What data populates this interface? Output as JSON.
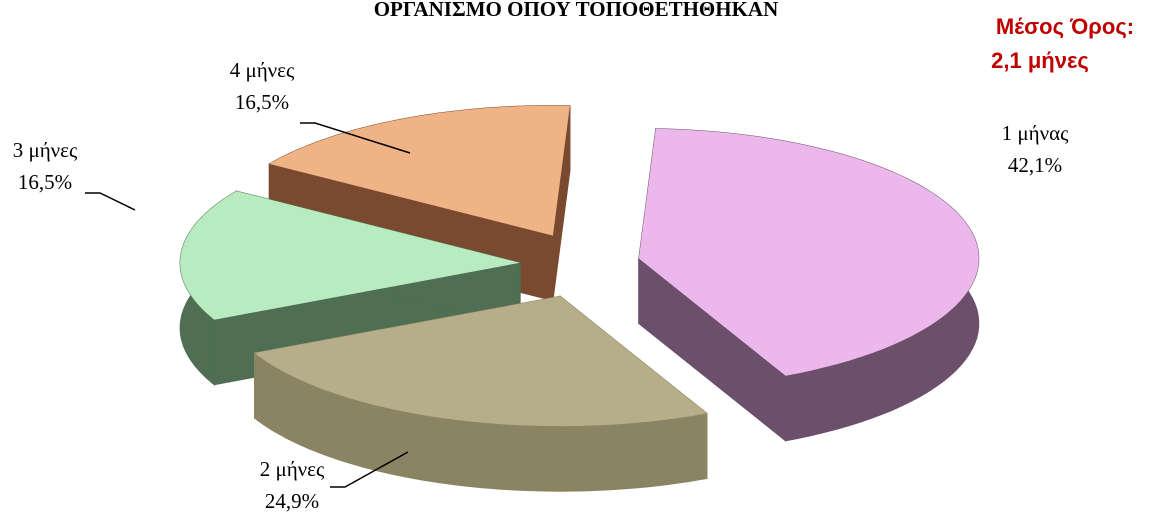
{
  "chart_data": {
    "type": "pie3d",
    "title": "ΟΡΓΑΝΙΣΜΟ ΟΠΟΥ ΤΟΠΟΘΕΤΗΘΗΚΑΝ",
    "annotation": [
      "Μέσος Όρος:",
      "2,1 μήνες"
    ],
    "categories": [
      "1 μήνας",
      "2 μήνες",
      "3 μήνες",
      "4 μήνες"
    ],
    "values": [
      42.1,
      24.9,
      16.5,
      16.5
    ],
    "value_labels": [
      "42,1%",
      "24,9%",
      "16,5%",
      "16,5%"
    ],
    "colors": [
      "#ecb8ec",
      "#b5ae88",
      "#b8ecc0",
      "#f0b386"
    ],
    "side_colors": [
      "#6b4f6b",
      "#8a8463",
      "#4f6e54",
      "#7a4a30"
    ]
  }
}
